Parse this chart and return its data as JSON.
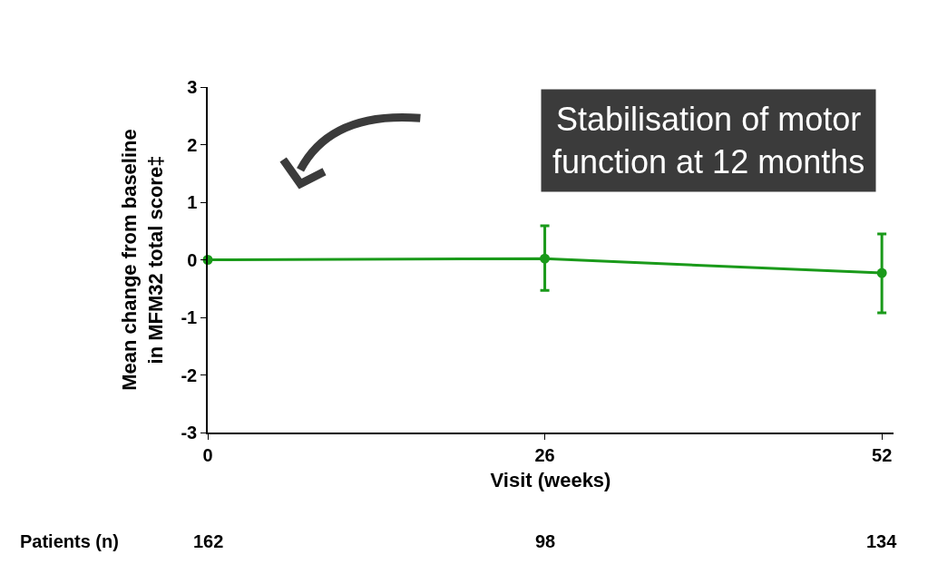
{
  "chart_data": {
    "type": "line",
    "xlabel": "Visit (weeks)",
    "ylabel": "Mean change from baseline\nin MFM32 total score‡",
    "x": [
      0,
      26,
      52
    ],
    "series": [
      {
        "color": "#1a9a1a",
        "values": [
          0,
          0.02,
          -0.23
        ],
        "errors": [
          null,
          [
            -0.53,
            0.59
          ],
          [
            -0.92,
            0.45
          ]
        ]
      }
    ],
    "xlim": [
      0,
      52.9
    ],
    "xticks": [
      0,
      26,
      52
    ],
    "ylim": [
      -3,
      3
    ],
    "yticks": [
      -3,
      -2,
      -1,
      0,
      1,
      2,
      3
    ],
    "legend": false,
    "marker": "circle",
    "line_style": "solid",
    "annotations": [
      "Stabilisation of motor\nfunction at 12 months",
      "Patients (n)",
      "162",
      "98",
      "134"
    ]
  }
}
